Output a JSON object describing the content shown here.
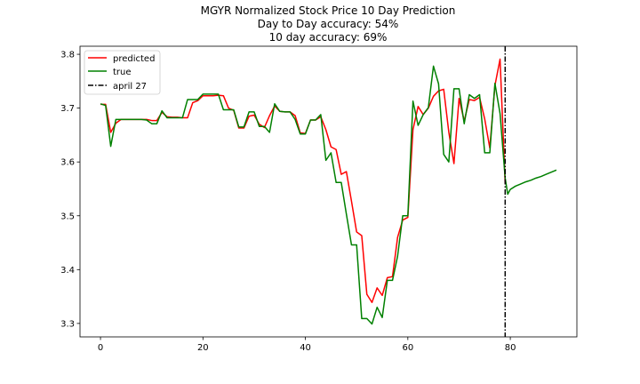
{
  "chart_data": {
    "type": "line",
    "title": "MGYR Normalized Stock Price 10 Day Prediction",
    "subtitle_lines": [
      "Day to Day accuracy: 54%",
      "10 day accuracy: 69%"
    ],
    "xlabel": "",
    "ylabel": "",
    "xlim": [
      -4,
      93
    ],
    "ylim": [
      3.275,
      3.815
    ],
    "x_ticks": [
      0,
      20,
      40,
      60,
      80
    ],
    "x_tick_labels": [
      "0",
      "20",
      "40",
      "60",
      "80"
    ],
    "y_ticks": [
      3.3,
      3.4,
      3.5,
      3.6,
      3.7,
      3.8
    ],
    "y_tick_labels": [
      "3.3",
      "3.4",
      "3.5",
      "3.6",
      "3.7",
      "3.8"
    ],
    "grid": false,
    "legend_position": "top-left",
    "series": [
      {
        "name": "predicted",
        "color": "#ff0000",
        "x": [
          0,
          1,
          2,
          3,
          4,
          5,
          6,
          7,
          8,
          9,
          10,
          11,
          12,
          13,
          14,
          15,
          16,
          17,
          18,
          19,
          20,
          21,
          22,
          23,
          24,
          25,
          26,
          27,
          28,
          29,
          30,
          31,
          32,
          33,
          34,
          35,
          36,
          37,
          38,
          39,
          40,
          41,
          42,
          43,
          44,
          45,
          46,
          47,
          48,
          49,
          50,
          51,
          52,
          53,
          54,
          55,
          56,
          57,
          58,
          59,
          60,
          61,
          62,
          63,
          64,
          65,
          66,
          67,
          68,
          69,
          70,
          71,
          72,
          73,
          74,
          75,
          76,
          77,
          78,
          79
        ],
        "y": [
          3.707,
          3.707,
          3.655,
          3.672,
          3.679,
          3.679,
          3.679,
          3.679,
          3.679,
          3.679,
          3.677,
          3.677,
          3.692,
          3.684,
          3.683,
          3.683,
          3.682,
          3.682,
          3.71,
          3.714,
          3.723,
          3.723,
          3.723,
          3.724,
          3.723,
          3.7,
          3.696,
          3.663,
          3.663,
          3.685,
          3.687,
          3.67,
          3.664,
          3.686,
          3.704,
          3.694,
          3.693,
          3.693,
          3.686,
          3.654,
          3.653,
          3.678,
          3.678,
          3.684,
          3.66,
          3.628,
          3.623,
          3.577,
          3.582,
          3.527,
          3.47,
          3.463,
          3.354,
          3.339,
          3.366,
          3.352,
          3.385,
          3.387,
          3.46,
          3.492,
          3.497,
          3.66,
          3.703,
          3.688,
          3.7,
          3.722,
          3.732,
          3.735,
          3.655,
          3.597,
          3.718,
          3.676,
          3.716,
          3.714,
          3.72,
          3.68,
          3.626,
          3.742,
          3.791,
          3.56
        ]
      },
      {
        "name": "true",
        "color": "#008000",
        "x": [
          0,
          1,
          2,
          3,
          4,
          5,
          6,
          7,
          8,
          9,
          10,
          11,
          12,
          13,
          14,
          15,
          16,
          17,
          18,
          19,
          20,
          21,
          22,
          23,
          24,
          25,
          26,
          27,
          28,
          29,
          30,
          31,
          32,
          33,
          34,
          35,
          36,
          37,
          38,
          39,
          40,
          41,
          42,
          43,
          44,
          45,
          46,
          47,
          48,
          49,
          50,
          51,
          52,
          53,
          54,
          55,
          56,
          57,
          58,
          59,
          60,
          61,
          62,
          63,
          64,
          65,
          66,
          67,
          68,
          69,
          70,
          71,
          72,
          73,
          74,
          75,
          76,
          77,
          78,
          79,
          79.5,
          80,
          81,
          82,
          83,
          84,
          85,
          86,
          87,
          88,
          89
        ],
        "y": [
          3.708,
          3.705,
          3.629,
          3.679,
          3.679,
          3.679,
          3.679,
          3.679,
          3.679,
          3.678,
          3.671,
          3.671,
          3.695,
          3.682,
          3.682,
          3.682,
          3.682,
          3.716,
          3.716,
          3.716,
          3.726,
          3.726,
          3.726,
          3.726,
          3.697,
          3.697,
          3.697,
          3.665,
          3.665,
          3.693,
          3.693,
          3.666,
          3.666,
          3.655,
          3.708,
          3.694,
          3.693,
          3.693,
          3.679,
          3.652,
          3.652,
          3.678,
          3.678,
          3.688,
          3.603,
          3.617,
          3.562,
          3.562,
          3.503,
          3.446,
          3.446,
          3.309,
          3.309,
          3.299,
          3.33,
          3.311,
          3.38,
          3.38,
          3.425,
          3.5,
          3.5,
          3.713,
          3.668,
          3.688,
          3.701,
          3.778,
          3.745,
          3.614,
          3.6,
          3.736,
          3.736,
          3.671,
          3.725,
          3.718,
          3.725,
          3.617,
          3.617,
          3.746,
          3.69,
          3.57,
          3.54,
          3.549,
          3.555,
          3.559,
          3.563,
          3.566,
          3.57,
          3.573,
          3.577,
          3.581,
          3.585
        ]
      }
    ],
    "vlines": [
      {
        "name": "april 27",
        "x": 79,
        "color": "#000000",
        "style": "dash-dot"
      }
    ]
  }
}
